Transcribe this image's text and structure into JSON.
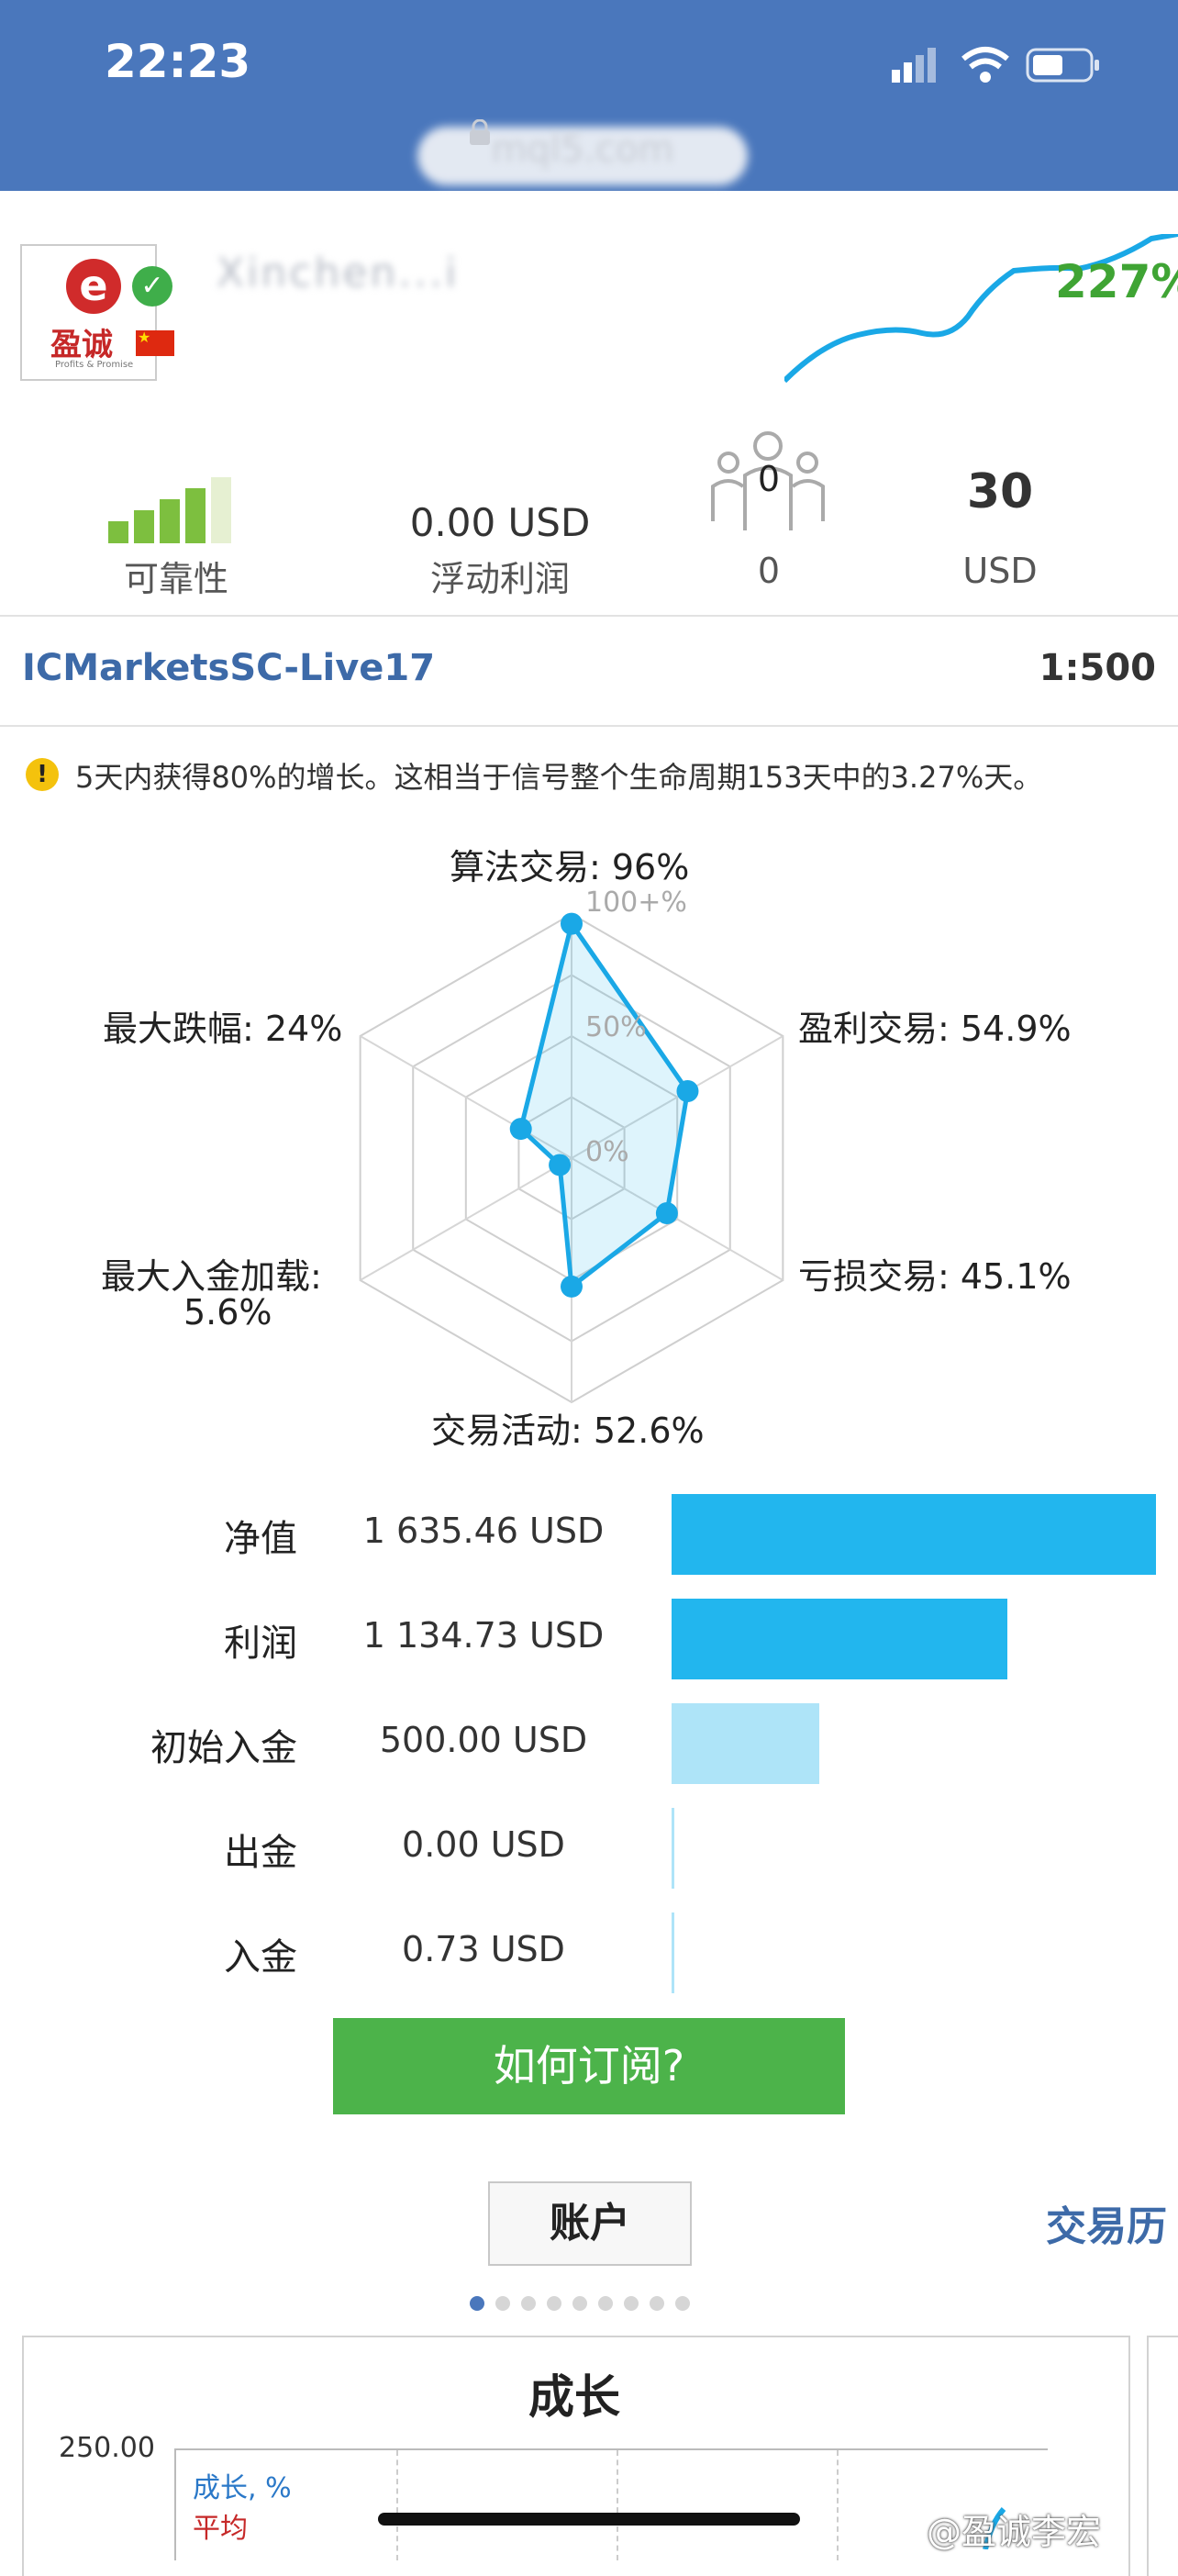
{
  "status_bar": {
    "time": "22:23"
  },
  "browser": {
    "url_masked": "mql5.com"
  },
  "signal": {
    "logo_text": "盈诚",
    "logo_subtext": "Profits & Promise",
    "name_masked": "Xinchen...i",
    "growth": "227%"
  },
  "stats": {
    "reliability_label": "可靠性",
    "floating_value": "0.00 USD",
    "floating_label": "浮动利润",
    "subscribers_icon_count": "0",
    "subscribers_value": "0",
    "price_value": "30",
    "price_unit": "USD"
  },
  "account": {
    "server": "ICMarketsSC-Live17",
    "leverage": "1:500"
  },
  "warning": {
    "text": "5天内获得80%的增长。这相当于信号整个生命周期153天中的3.27%天。"
  },
  "radar": {
    "grid_labels": [
      "100+%",
      "50%",
      "0%"
    ],
    "axes": [
      {
        "label": "算法交易: 96%",
        "value": 96
      },
      {
        "label": "盈利交易: 54.9%",
        "value": 54.9
      },
      {
        "label": "亏损交易: 45.1%",
        "value": 45.1
      },
      {
        "label": "交易活动: 52.6%",
        "value": 52.6
      },
      {
        "label_line1": "最大入金加载:",
        "label_line2": "5.6%",
        "value": 5.6
      },
      {
        "label": "最大跌幅: 24%",
        "value": 24
      }
    ]
  },
  "balances": [
    {
      "label": "净值",
      "value": "1 635.46 USD",
      "amount": 1635.46
    },
    {
      "label": "利润",
      "value": "1 134.73 USD",
      "amount": 1134.73
    },
    {
      "label": "初始入金",
      "value": "500.00 USD",
      "amount": 500.0
    },
    {
      "label": "出金",
      "value": "0.00 USD",
      "amount": 0.0
    },
    {
      "label": "入金",
      "value": "0.73 USD",
      "amount": 0.73
    }
  ],
  "cta": {
    "label": "如何订阅?"
  },
  "tabs": {
    "active": "账户",
    "next": "交易历"
  },
  "growth_card": {
    "title": "成长",
    "ytick": "250.00",
    "legend_growth": "成长, %",
    "legend_avg": "平均"
  },
  "watermark": "@盈诚李宏",
  "colors": {
    "header_blue": "#4a77bc",
    "accent_cyan": "#22b6ee",
    "cta_green": "#4cb34a",
    "growth_green": "#3fa434"
  }
}
